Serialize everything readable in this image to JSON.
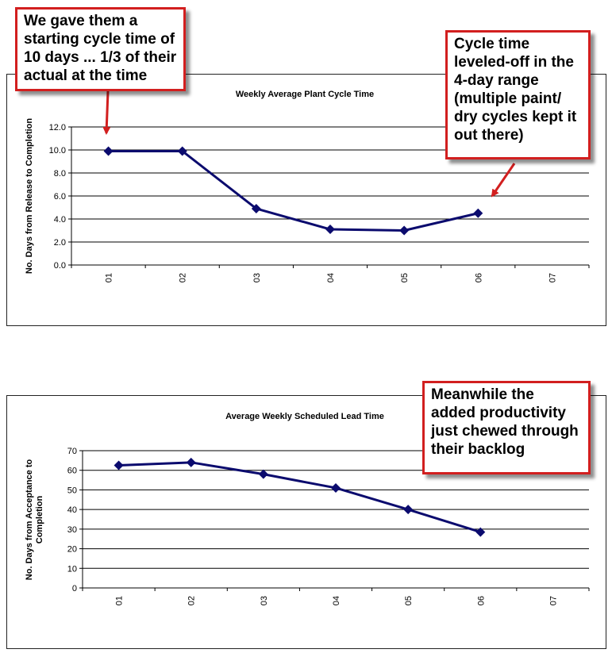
{
  "chart_data": [
    {
      "type": "line",
      "title": "Weekly Average Plant Cycle Time",
      "ylabel": "No. Days from Release to Completion",
      "xlabel": "",
      "categories": [
        "01",
        "02",
        "03",
        "04",
        "05",
        "06",
        "07"
      ],
      "ylim": [
        0,
        12
      ],
      "yticks": [
        "0.0",
        "2.0",
        "4.0",
        "6.0",
        "8.0",
        "10.0",
        "12.0"
      ],
      "series": [
        {
          "values": [
            9.9,
            9.9,
            4.9,
            3.1,
            3.0,
            4.5,
            null
          ]
        }
      ],
      "grid": true,
      "color": "#0b0b6e"
    },
    {
      "type": "line",
      "title": "Average Weekly Scheduled Lead Time",
      "ylabel": "No. Days from Acceptance to Completion",
      "xlabel": "",
      "categories": [
        "01",
        "02",
        "03",
        "04",
        "05",
        "06",
        "07"
      ],
      "ylim": [
        0,
        70
      ],
      "yticks": [
        "0",
        "10",
        "20",
        "30",
        "40",
        "50",
        "60",
        "70"
      ],
      "series": [
        {
          "values": [
            62.5,
            64,
            58,
            51,
            40,
            28.5,
            null
          ]
        }
      ],
      "grid": true,
      "color": "#0b0b6e"
    }
  ],
  "annotations": {
    "callout1": [
      "We gave them a",
      "starting cycle time of",
      "10 days ... 1/3 of their",
      "actual at the time"
    ],
    "callout2": [
      "Cycle time",
      "leveled-off in the",
      "4-day range",
      "(multiple paint/",
      "dry cycles kept it",
      "out there)"
    ],
    "callout3": [
      "Meanwhile the",
      "added productivity",
      "just chewed through",
      "their backlog"
    ]
  },
  "colors": {
    "callout_border": "#d21f1f",
    "arrow": "#d21f1f",
    "line": "#0b0b6e"
  }
}
